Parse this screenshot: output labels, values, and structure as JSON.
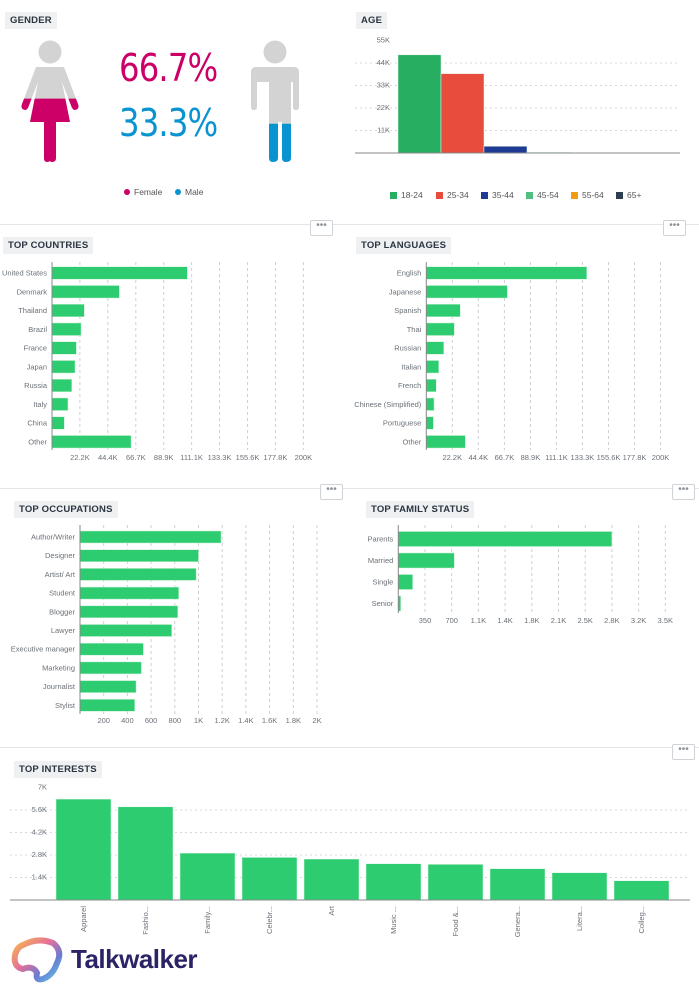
{
  "gender": {
    "title": "GENDER",
    "female_pct": "66.7%",
    "male_pct": "33.3%",
    "female_fraction": 0.667,
    "male_fraction": 0.333,
    "legend": [
      "Female",
      "Male"
    ],
    "colors": {
      "female": "#cc0066",
      "male": "#0a93d1",
      "empty": "#d3d3d3"
    }
  },
  "more_button_label": "•••",
  "brand": {
    "name": "Talkwalker"
  },
  "chart_data": [
    {
      "id": "age",
      "type": "bar",
      "title": "AGE",
      "categories": [
        "18-24",
        "25-34",
        "35-44",
        "45-54",
        "55-64",
        "65+"
      ],
      "values": [
        48000,
        38800,
        3300,
        400,
        0,
        0
      ],
      "colors": [
        "#27ae60",
        "#e74c3c",
        "#1f3a93",
        "#52be80",
        "#f39c12",
        "#2c3e50"
      ],
      "ylim": [
        0,
        55000
      ],
      "ticks": [
        11000,
        22000,
        33000,
        44000,
        55000
      ],
      "tick_labels": [
        "11K",
        "22K",
        "33K",
        "44K",
        "55K"
      ],
      "legend": "bottom",
      "grid": true
    },
    {
      "id": "countries",
      "type": "bar",
      "orientation": "horizontal",
      "title": "TOP COUNTRIES",
      "categories": [
        "United States",
        "Denmark",
        "Thailand",
        "Brazil",
        "France",
        "Japan",
        "Russia",
        "Italy",
        "China",
        "Other"
      ],
      "values": [
        107700,
        53600,
        25700,
        23100,
        19400,
        18300,
        15700,
        12700,
        9800,
        62900
      ],
      "xlim": [
        0,
        200000
      ],
      "ticks": [
        22200,
        44400,
        66700,
        88900,
        111100,
        133300,
        155600,
        177800,
        200000
      ],
      "tick_labels": [
        "22.2K",
        "44.4K",
        "66.7K",
        "88.9K",
        "111.1K",
        "133.3K",
        "155.6K",
        "177.8K",
        "200K"
      ],
      "color": "#2ecc71",
      "grid": true
    },
    {
      "id": "languages",
      "type": "bar",
      "orientation": "horizontal",
      "title": "TOP LANGUAGES",
      "categories": [
        "English",
        "Japanese",
        "Spanish",
        "Thai",
        "Russian",
        "Italian",
        "French",
        "Chinese (Simplified)",
        "Portuguese",
        "Other"
      ],
      "values": [
        137000,
        69200,
        29000,
        23900,
        14900,
        10600,
        8500,
        6600,
        6000,
        33300
      ],
      "xlim": [
        0,
        200000
      ],
      "ticks": [
        22200,
        44400,
        66700,
        88900,
        111100,
        133300,
        155600,
        177800,
        200000
      ],
      "tick_labels": [
        "22.2K",
        "44.4K",
        "66.7K",
        "88.9K",
        "111.1K",
        "133.3K",
        "155.6K",
        "177.8K",
        "200K"
      ],
      "color": "#2ecc71",
      "grid": true
    },
    {
      "id": "occupations",
      "type": "bar",
      "orientation": "horizontal",
      "title": "TOP OCCUPATIONS",
      "categories": [
        "Author/Writer",
        "Designer",
        "Artist/ Art",
        "Student",
        "Blogger",
        "Lawyer",
        "Executive manager",
        "Marketing",
        "Journalist",
        "Stylist"
      ],
      "values": [
        1190,
        1000,
        980,
        833,
        825,
        774,
        535,
        518,
        473,
        462
      ],
      "xlim": [
        0,
        2000
      ],
      "ticks": [
        200,
        400,
        600,
        800,
        1000,
        1200,
        1400,
        1600,
        1800,
        2000
      ],
      "tick_labels": [
        "200",
        "400",
        "600",
        "800",
        "1K",
        "1.2K",
        "1.4K",
        "1.6K",
        "1.8K",
        "2K"
      ],
      "color": "#2ecc71",
      "grid": true
    },
    {
      "id": "family",
      "type": "bar",
      "orientation": "horizontal",
      "title": "TOP FAMILY STATUS",
      "categories": [
        "Parents",
        "Married",
        "Single",
        "Senior"
      ],
      "values": [
        2800,
        734,
        188,
        31
      ],
      "xlim": [
        0,
        3500
      ],
      "ticks": [
        350,
        700,
        1050,
        1400,
        1750,
        2100,
        2450,
        2800,
        3150,
        3500
      ],
      "tick_labels": [
        "350",
        "700",
        "1.1K",
        "1.4K",
        "1.8K",
        "2.1K",
        "2.5K",
        "2.8K",
        "3.2K",
        "3.5K"
      ],
      "color": "#2ecc71",
      "grid": true
    },
    {
      "id": "interests",
      "type": "bar",
      "title": "TOP INTERESTS",
      "categories": [
        "Apparel",
        "Fashio...",
        "Family...",
        "Celebr...",
        "Art",
        "Music ...",
        "Food &...",
        "Genera...",
        "Litera...",
        "Colleg..."
      ],
      "values": [
        6280,
        5800,
        2920,
        2650,
        2550,
        2260,
        2220,
        1950,
        1700,
        1200
      ],
      "ylim": [
        0,
        7000
      ],
      "ticks": [
        1400,
        2800,
        4200,
        5600,
        7000
      ],
      "tick_labels": [
        "1.4K",
        "2.8K",
        "4.2K",
        "5.6K",
        "7K"
      ],
      "color": "#2ecc71",
      "grid": true
    }
  ]
}
